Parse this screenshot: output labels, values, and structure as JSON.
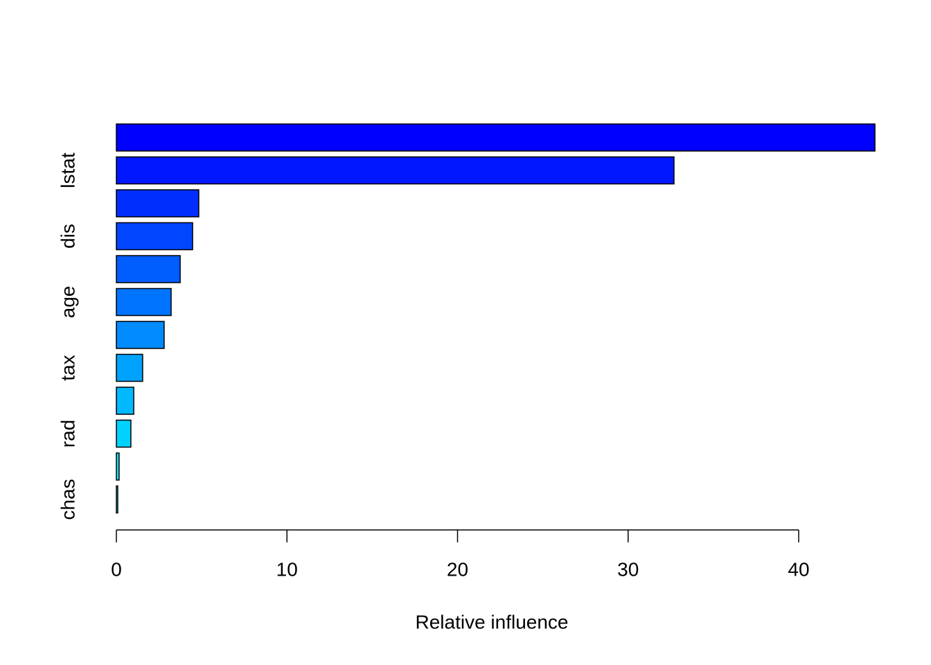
{
  "chart_data": {
    "type": "bar",
    "orientation": "horizontal",
    "xlabel": "Relative influence",
    "categories": [
      null,
      "lstat",
      null,
      "dis",
      null,
      "age",
      null,
      "tax",
      null,
      "rad",
      null,
      "chas"
    ],
    "values": [
      44.47,
      32.69,
      4.83,
      4.47,
      3.74,
      3.21,
      2.8,
      1.54,
      1.02,
      0.85,
      0.16,
      0.08
    ],
    "colors": [
      "#0000FF",
      "#0017FF",
      "#002EFF",
      "#0046FF",
      "#005DFF",
      "#0074FF",
      "#008BFF",
      "#00A2FF",
      "#00B9FF",
      "#00D1FF",
      "#00E8FF",
      "#00FFFF"
    ],
    "xlim": [
      0,
      40
    ],
    "xticks": [
      0,
      10,
      20,
      30,
      40
    ]
  }
}
